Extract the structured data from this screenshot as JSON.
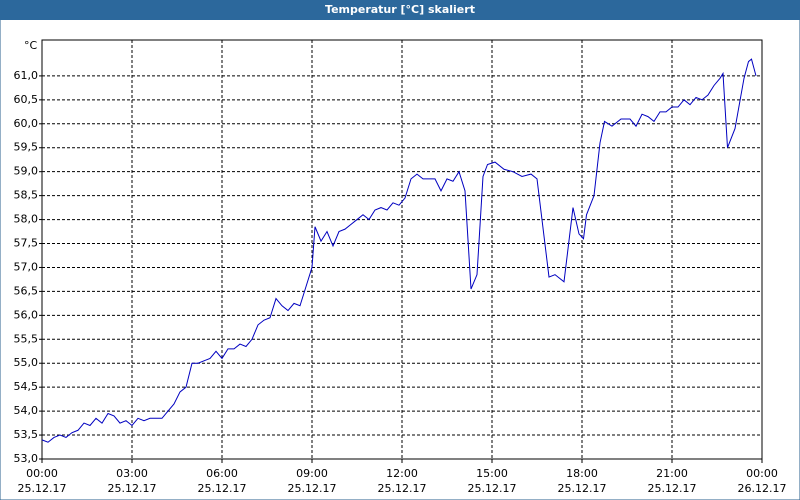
{
  "chart_data": {
    "type": "line",
    "title": "Temperatur [°C] skaliert",
    "y_label": "°C",
    "x": [
      0,
      0.2,
      0.4,
      0.6,
      0.8,
      1.0,
      1.2,
      1.4,
      1.6,
      1.8,
      2.0,
      2.2,
      2.4,
      2.6,
      2.8,
      3.0,
      3.2,
      3.4,
      3.6,
      3.8,
      4.0,
      4.2,
      4.4,
      4.6,
      4.8,
      5.0,
      5.2,
      5.4,
      5.6,
      5.8,
      6.0,
      6.2,
      6.4,
      6.6,
      6.8,
      7.0,
      7.2,
      7.4,
      7.6,
      7.8,
      8.0,
      8.2,
      8.4,
      8.6,
      8.8,
      9.0,
      9.1,
      9.3,
      9.5,
      9.7,
      9.9,
      10.1,
      10.3,
      10.5,
      10.7,
      10.9,
      11.1,
      11.3,
      11.5,
      11.7,
      11.9,
      12.1,
      12.3,
      12.5,
      12.7,
      12.9,
      13.1,
      13.3,
      13.5,
      13.7,
      13.9,
      14.1,
      14.3,
      14.5,
      14.7,
      14.85,
      15.1,
      15.4,
      15.7,
      16.0,
      16.3,
      16.5,
      16.9,
      17.1,
      17.4,
      17.7,
      17.9,
      18.05,
      18.15,
      18.4,
      18.6,
      18.75,
      19.0,
      19.3,
      19.6,
      19.8,
      20.0,
      20.2,
      20.4,
      20.6,
      20.8,
      21.0,
      21.2,
      21.4,
      21.6,
      21.8,
      22.0,
      22.2,
      22.4,
      22.6,
      22.7,
      22.85,
      23.1,
      23.4,
      23.55,
      23.65,
      23.8
    ],
    "values": [
      53.4,
      53.35,
      53.45,
      53.5,
      53.45,
      53.55,
      53.6,
      53.75,
      53.7,
      53.85,
      53.75,
      53.95,
      53.9,
      53.75,
      53.8,
      53.7,
      53.85,
      53.8,
      53.85,
      53.85,
      53.85,
      54.0,
      54.15,
      54.4,
      54.5,
      55.0,
      55.0,
      55.05,
      55.1,
      55.25,
      55.1,
      55.3,
      55.3,
      55.4,
      55.35,
      55.5,
      55.8,
      55.9,
      55.95,
      56.35,
      56.2,
      56.1,
      56.25,
      56.2,
      56.6,
      57.0,
      57.85,
      57.55,
      57.75,
      57.45,
      57.75,
      57.8,
      57.9,
      58.0,
      58.1,
      58.0,
      58.2,
      58.25,
      58.2,
      58.35,
      58.3,
      58.45,
      58.85,
      58.95,
      58.85,
      58.85,
      58.85,
      58.6,
      58.85,
      58.8,
      59.0,
      58.6,
      56.55,
      56.85,
      58.9,
      59.15,
      59.2,
      59.05,
      59.0,
      58.9,
      58.95,
      58.85,
      56.8,
      56.85,
      56.7,
      58.25,
      57.7,
      57.6,
      58.1,
      58.5,
      59.6,
      60.05,
      59.95,
      60.1,
      60.1,
      59.95,
      60.2,
      60.15,
      60.05,
      60.25,
      60.25,
      60.35,
      60.35,
      60.5,
      60.4,
      60.55,
      60.5,
      60.6,
      60.8,
      60.95,
      61.05,
      59.5,
      59.9,
      60.95,
      61.3,
      61.35,
      61.0
    ],
    "color": "#0000c0",
    "xlim": [
      0,
      24
    ],
    "xticks": [
      {
        "value": 0,
        "label": "00:00",
        "date": "25.12.17"
      },
      {
        "value": 3,
        "label": "03:00",
        "date": "25.12.17"
      },
      {
        "value": 6,
        "label": "06:00",
        "date": "25.12.17"
      },
      {
        "value": 9,
        "label": "09:00",
        "date": "25.12.17"
      },
      {
        "value": 12,
        "label": "12:00",
        "date": "25.12.17"
      },
      {
        "value": 15,
        "label": "15:00",
        "date": "25.12.17"
      },
      {
        "value": 18,
        "label": "18:00",
        "date": "25.12.17"
      },
      {
        "value": 21,
        "label": "21:00",
        "date": "25.12.17"
      },
      {
        "value": 24,
        "label": "00:00",
        "date": "26.12.17"
      }
    ],
    "ylim": [
      53,
      61.75
    ],
    "yticks": [
      {
        "value": 53,
        "label": "53,0"
      },
      {
        "value": 53.5,
        "label": "53,5"
      },
      {
        "value": 54,
        "label": "54,0"
      },
      {
        "value": 54.5,
        "label": "54,5"
      },
      {
        "value": 55,
        "label": "55,0"
      },
      {
        "value": 55.5,
        "label": "55,5"
      },
      {
        "value": 56,
        "label": "56,0"
      },
      {
        "value": 56.5,
        "label": "56,5"
      },
      {
        "value": 57,
        "label": "57,0"
      },
      {
        "value": 57.5,
        "label": "57,5"
      },
      {
        "value": 58,
        "label": "58,0"
      },
      {
        "value": 58.5,
        "label": "58,5"
      },
      {
        "value": 59,
        "label": "59,0"
      },
      {
        "value": 59.5,
        "label": "59,5"
      },
      {
        "value": 60,
        "label": "60,0"
      },
      {
        "value": 60.5,
        "label": "60,5"
      },
      {
        "value": 61,
        "label": "61,0"
      }
    ],
    "grid": true
  }
}
